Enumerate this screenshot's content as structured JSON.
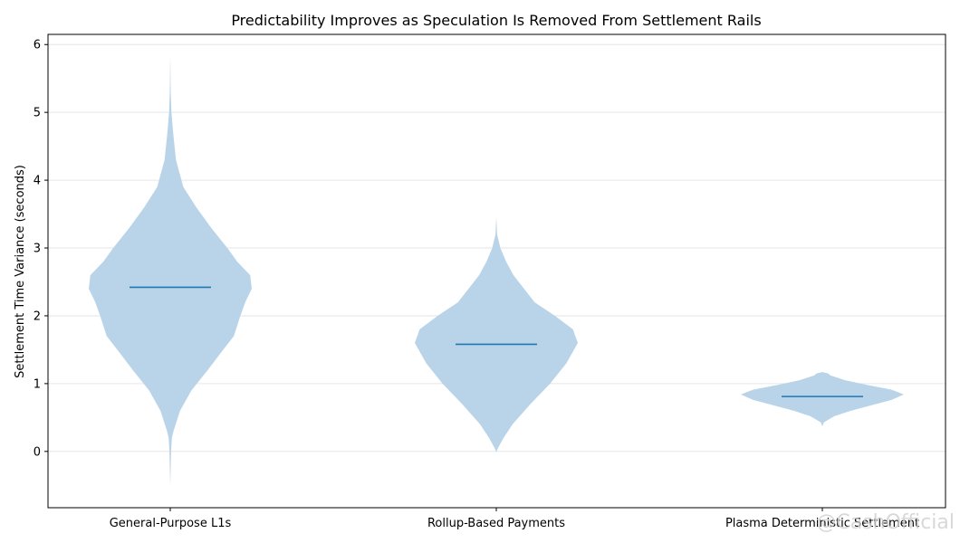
{
  "chart_data": {
    "type": "violin",
    "title": "Predictability Improves as Speculation Is Removed From Settlement Rails",
    "xlabel": "",
    "ylabel": "Settlement Time Variance (seconds)",
    "ylim": [
      -0.83,
      6.15
    ],
    "yticks": [
      0,
      1,
      2,
      3,
      4,
      5,
      6
    ],
    "grid": true,
    "categories": [
      "General-Purpose L1s",
      "Rollup-Based Payments",
      "Plasma Deterministic Settlement"
    ],
    "series": [
      {
        "name": "General-Purpose L1s",
        "median": 2.42,
        "min": -0.52,
        "max": 5.86,
        "profile": [
          [
            -0.52,
            0.0
          ],
          [
            0.0,
            0.01
          ],
          [
            0.2,
            0.02
          ],
          [
            0.3,
            0.04
          ],
          [
            0.6,
            0.12
          ],
          [
            0.9,
            0.26
          ],
          [
            1.2,
            0.46
          ],
          [
            1.5,
            0.65
          ],
          [
            1.7,
            0.78
          ],
          [
            2.0,
            0.86
          ],
          [
            2.2,
            0.92
          ],
          [
            2.4,
            1.0
          ],
          [
            2.6,
            0.98
          ],
          [
            2.8,
            0.82
          ],
          [
            3.0,
            0.7
          ],
          [
            3.3,
            0.5
          ],
          [
            3.6,
            0.32
          ],
          [
            3.9,
            0.16
          ],
          [
            4.3,
            0.07
          ],
          [
            4.7,
            0.035
          ],
          [
            5.0,
            0.015
          ],
          [
            5.3,
            0.006
          ],
          [
            5.86,
            0.0
          ]
        ]
      },
      {
        "name": "Rollup-Based Payments",
        "median": 1.58,
        "min": -0.01,
        "max": 3.45,
        "profile": [
          [
            -0.01,
            0.0
          ],
          [
            0.05,
            0.02
          ],
          [
            0.2,
            0.09
          ],
          [
            0.4,
            0.2
          ],
          [
            0.7,
            0.42
          ],
          [
            1.0,
            0.66
          ],
          [
            1.3,
            0.86
          ],
          [
            1.6,
            1.0
          ],
          [
            1.8,
            0.94
          ],
          [
            2.0,
            0.72
          ],
          [
            2.2,
            0.47
          ],
          [
            2.4,
            0.34
          ],
          [
            2.6,
            0.21
          ],
          [
            2.8,
            0.12
          ],
          [
            3.0,
            0.05
          ],
          [
            3.2,
            0.01
          ],
          [
            3.45,
            0.0
          ]
        ]
      },
      {
        "name": "Plasma Deterministic Settlement",
        "median": 0.81,
        "min": 0.37,
        "max": 1.17,
        "profile": [
          [
            0.37,
            0.0
          ],
          [
            0.43,
            0.02
          ],
          [
            0.52,
            0.15
          ],
          [
            0.6,
            0.35
          ],
          [
            0.68,
            0.6
          ],
          [
            0.76,
            0.85
          ],
          [
            0.84,
            1.0
          ],
          [
            0.91,
            0.85
          ],
          [
            0.98,
            0.55
          ],
          [
            1.05,
            0.28
          ],
          [
            1.12,
            0.1
          ],
          [
            1.15,
            0.07
          ],
          [
            1.17,
            0.0
          ]
        ]
      }
    ]
  },
  "watermark": "@CashOfficial"
}
